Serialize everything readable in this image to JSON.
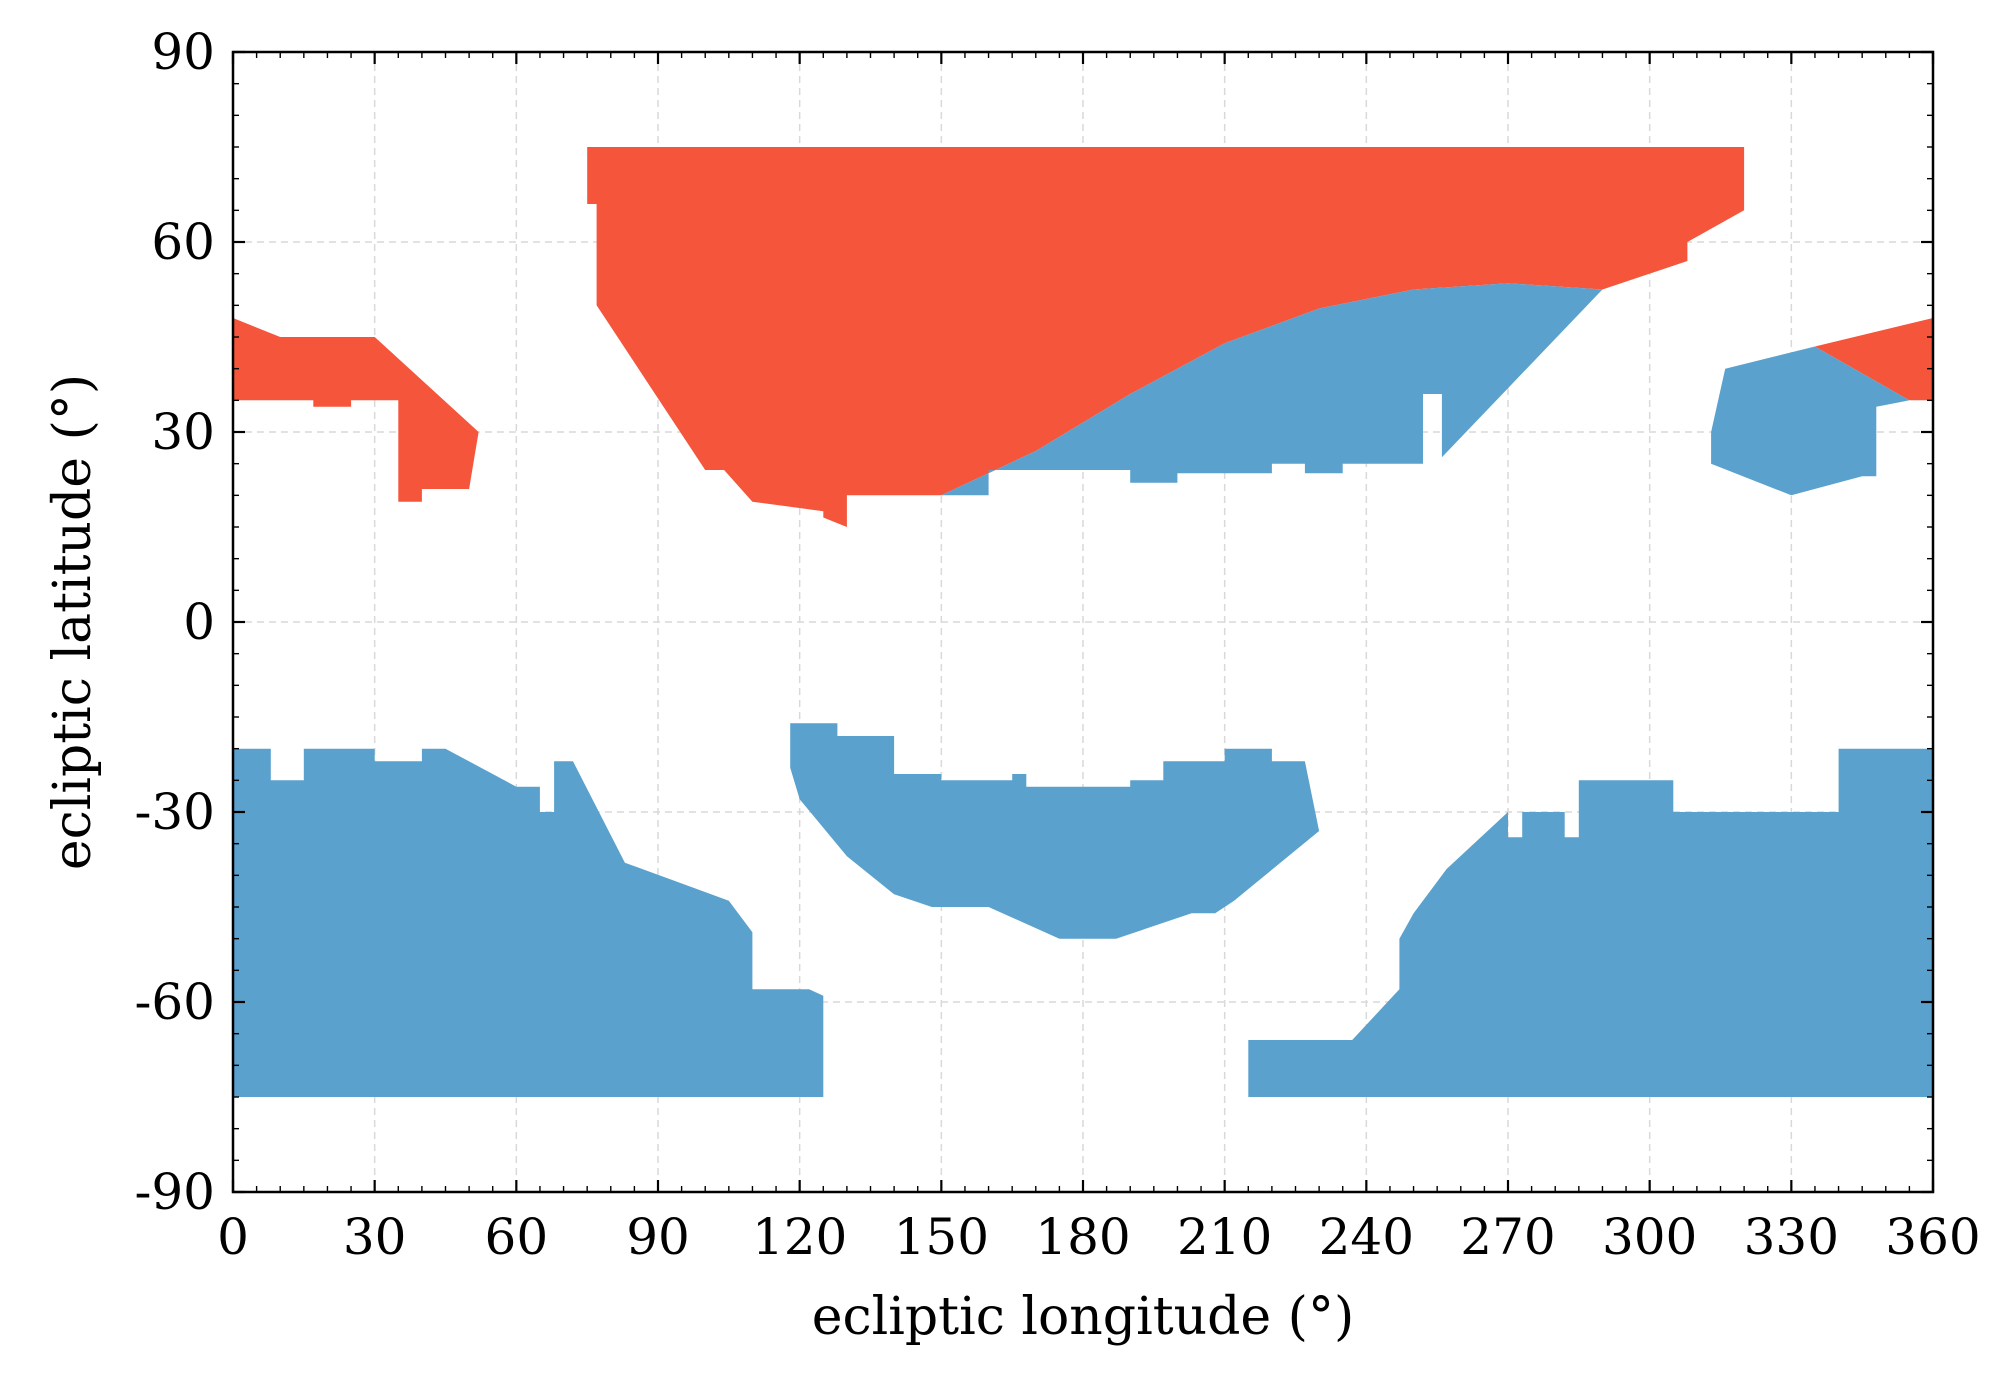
{
  "chart_data": {
    "type": "area",
    "xlabel": "ecliptic longitude (°)",
    "ylabel": "ecliptic latitude (°)",
    "xlim": [
      0,
      360
    ],
    "ylim": [
      -90,
      90
    ],
    "xticks": [
      0,
      30,
      60,
      90,
      120,
      150,
      180,
      210,
      240,
      270,
      300,
      330,
      360
    ],
    "yticks": [
      -90,
      -60,
      -30,
      0,
      30,
      60,
      90
    ],
    "xtick_labels": [
      "0",
      "30",
      "60",
      "90",
      "120",
      "150",
      "180",
      "210",
      "240",
      "270",
      "300",
      "330",
      "360"
    ],
    "ytick_labels": [
      "-90",
      "-60",
      "-30",
      "0",
      "30",
      "60",
      "90"
    ],
    "grid": true,
    "legend": "none",
    "colors": {
      "red": "#f4553b",
      "blue": "#5aa1cd"
    },
    "regions": [
      {
        "color": "red",
        "points": [
          [
            0,
            48
          ],
          [
            10,
            45
          ],
          [
            30,
            45
          ],
          [
            52,
            30
          ],
          [
            50,
            21
          ],
          [
            40,
            21
          ],
          [
            40,
            19
          ],
          [
            35,
            19
          ],
          [
            35,
            35
          ],
          [
            25,
            35
          ],
          [
            25,
            34
          ],
          [
            17,
            34
          ],
          [
            17,
            35
          ],
          [
            0,
            35
          ]
        ]
      },
      {
        "color": "red",
        "points": [
          [
            75,
            75
          ],
          [
            320,
            75
          ],
          [
            320,
            65
          ],
          [
            308,
            60
          ],
          [
            308,
            57
          ],
          [
            290,
            52.5
          ],
          [
            270,
            53.5
          ],
          [
            250,
            52.5
          ],
          [
            230,
            49.5
          ],
          [
            210,
            44
          ],
          [
            190,
            36
          ],
          [
            170,
            27
          ],
          [
            150,
            20
          ],
          [
            130,
            20
          ],
          [
            130,
            15
          ],
          [
            125,
            16.5
          ],
          [
            125,
            17.5
          ],
          [
            110,
            19
          ],
          [
            104,
            24
          ],
          [
            100,
            24
          ],
          [
            77,
            50
          ],
          [
            77,
            66
          ],
          [
            75,
            66
          ]
        ]
      },
      {
        "color": "red",
        "points": [
          [
            335,
            43.5
          ],
          [
            360,
            48
          ],
          [
            360,
            35
          ],
          [
            355,
            35
          ]
        ]
      },
      {
        "color": "blue",
        "points": [
          [
            150,
            20
          ],
          [
            170,
            27
          ],
          [
            190,
            36
          ],
          [
            210,
            44
          ],
          [
            230,
            49.5
          ],
          [
            250,
            52.5
          ],
          [
            270,
            53.5
          ],
          [
            290,
            52.5
          ],
          [
            256,
            26
          ],
          [
            256,
            36
          ],
          [
            252,
            36
          ],
          [
            252,
            25
          ],
          [
            235,
            25
          ],
          [
            235,
            23.5
          ],
          [
            227,
            23.5
          ],
          [
            227,
            25
          ],
          [
            220,
            25
          ],
          [
            220,
            23.5
          ],
          [
            200,
            23.5
          ],
          [
            200,
            22
          ],
          [
            190,
            22
          ],
          [
            190,
            24
          ],
          [
            160,
            24
          ],
          [
            160,
            20
          ]
        ]
      },
      {
        "color": "blue",
        "points": [
          [
            316,
            40
          ],
          [
            335,
            43.5
          ],
          [
            355,
            35
          ],
          [
            348,
            34
          ],
          [
            348,
            23
          ],
          [
            345,
            23
          ],
          [
            330,
            20
          ],
          [
            313,
            25
          ],
          [
            313,
            30
          ]
        ]
      },
      {
        "color": "blue",
        "points": [
          [
            0,
            -20
          ],
          [
            8,
            -20
          ],
          [
            8,
            -25
          ],
          [
            15,
            -25
          ],
          [
            15,
            -20
          ],
          [
            30,
            -20
          ],
          [
            30,
            -22
          ],
          [
            40,
            -22
          ],
          [
            40,
            -20
          ],
          [
            45,
            -20
          ],
          [
            60,
            -26
          ],
          [
            65,
            -26
          ],
          [
            65,
            -30
          ],
          [
            68,
            -30
          ],
          [
            68,
            -22
          ],
          [
            72,
            -22
          ],
          [
            83,
            -38
          ],
          [
            105,
            -44
          ],
          [
            110,
            -49
          ],
          [
            110,
            -58
          ],
          [
            122,
            -58
          ],
          [
            125,
            -59
          ],
          [
            125,
            -75
          ],
          [
            0,
            -75
          ]
        ]
      },
      {
        "color": "blue",
        "points": [
          [
            118,
            -16
          ],
          [
            128,
            -16
          ],
          [
            128,
            -18
          ],
          [
            140,
            -18
          ],
          [
            140,
            -24
          ],
          [
            150,
            -24
          ],
          [
            150,
            -25
          ],
          [
            165,
            -25
          ],
          [
            165,
            -24
          ],
          [
            168,
            -24
          ],
          [
            168,
            -26
          ],
          [
            190,
            -26
          ],
          [
            190,
            -25
          ],
          [
            197,
            -25
          ],
          [
            197,
            -22
          ],
          [
            210,
            -22
          ],
          [
            210,
            -20
          ],
          [
            220,
            -20
          ],
          [
            220,
            -22
          ],
          [
            227,
            -22
          ],
          [
            230,
            -33
          ],
          [
            212,
            -44
          ],
          [
            208,
            -46
          ],
          [
            203,
            -46
          ],
          [
            187,
            -50
          ],
          [
            175,
            -50
          ],
          [
            160,
            -45
          ],
          [
            148,
            -45
          ],
          [
            140,
            -43
          ],
          [
            130,
            -37
          ],
          [
            120,
            -28
          ],
          [
            118,
            -23
          ]
        ]
      },
      {
        "color": "blue",
        "points": [
          [
            215,
            -66
          ],
          [
            237,
            -66
          ],
          [
            247,
            -58
          ],
          [
            247,
            -50
          ],
          [
            250,
            -46
          ],
          [
            257,
            -39
          ],
          [
            270,
            -30
          ],
          [
            270,
            -34
          ],
          [
            273,
            -34
          ],
          [
            273,
            -30
          ],
          [
            282,
            -30
          ],
          [
            282,
            -34
          ],
          [
            285,
            -34
          ],
          [
            285,
            -25
          ],
          [
            305,
            -25
          ],
          [
            305,
            -30
          ],
          [
            340,
            -30
          ],
          [
            340,
            -20
          ],
          [
            360,
            -20
          ],
          [
            360,
            -75
          ],
          [
            215,
            -75
          ]
        ]
      }
    ]
  }
}
